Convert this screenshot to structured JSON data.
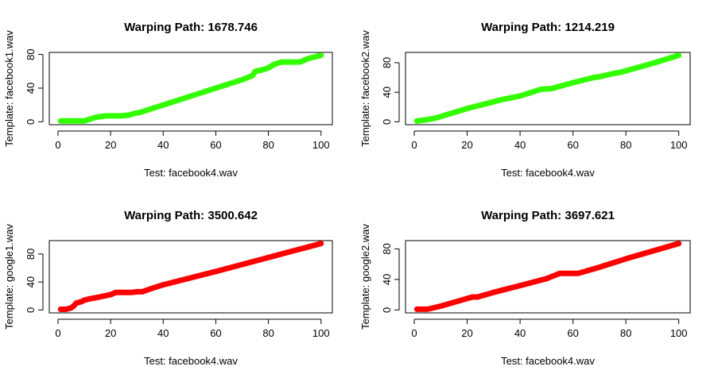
{
  "chart_data": [
    {
      "type": "line",
      "title": "Warping Path: 1678.746",
      "xlabel": "Test: facebook4.wav",
      "ylabel": "Template: facebook1.wav",
      "color": "#33ff00",
      "xlim": [
        1,
        100
      ],
      "ylim": [
        0,
        79
      ],
      "xticks": [
        0,
        20,
        40,
        60,
        80,
        100
      ],
      "yticks": [
        0,
        40,
        80
      ],
      "grid": false,
      "x": [
        1,
        10,
        12,
        14,
        16,
        18,
        20,
        24,
        27,
        29,
        31,
        35,
        40,
        50,
        60,
        66,
        70,
        74,
        75,
        78,
        80,
        82,
        85,
        90,
        92,
        95,
        100
      ],
      "y": [
        1,
        1,
        3,
        5,
        6,
        7,
        7,
        7,
        8,
        10,
        11,
        15,
        20,
        30,
        40,
        46,
        50,
        55,
        60,
        62,
        64,
        68,
        71,
        71,
        71,
        75,
        79
      ]
    },
    {
      "type": "line",
      "title": "Warping Path: 1214.219",
      "xlabel": "Test: facebook4.wav",
      "ylabel": "Template: facebook2.wav",
      "color": "#33ff00",
      "xlim": [
        1,
        100
      ],
      "ylim": [
        0,
        90
      ],
      "xticks": [
        0,
        20,
        40,
        60,
        80,
        100
      ],
      "yticks": [
        0,
        40,
        80
      ],
      "grid": false,
      "x": [
        1,
        5,
        8,
        10,
        20,
        30,
        33,
        40,
        48,
        52,
        60,
        68,
        70,
        76,
        78,
        90,
        100
      ],
      "y": [
        1,
        3,
        5,
        7,
        18,
        27,
        30,
        35,
        44,
        45,
        53,
        60,
        61,
        66,
        67,
        79,
        90
      ]
    },
    {
      "type": "line",
      "title": "Warping Path: 3500.642",
      "xlabel": "Test: facebook4.wav",
      "ylabel": "Template: google1.wav",
      "color": "#ff0000",
      "xlim": [
        1,
        100
      ],
      "ylim": [
        0,
        95
      ],
      "xticks": [
        0,
        20,
        40,
        60,
        80,
        100
      ],
      "yticks": [
        0,
        40,
        80
      ],
      "grid": false,
      "x": [
        1,
        3,
        5,
        6,
        7,
        8,
        9,
        10,
        12,
        15,
        20,
        22,
        25,
        28,
        30,
        32,
        35,
        40,
        60,
        80,
        100
      ],
      "y": [
        1,
        1,
        3,
        6,
        10,
        11,
        12,
        14,
        16,
        18,
        22,
        25,
        25,
        25,
        26,
        26,
        30,
        36,
        55,
        75,
        95
      ]
    },
    {
      "type": "line",
      "title": "Warping Path: 3697.621",
      "xlabel": "Test: facebook4.wav",
      "ylabel": "Template: google2.wav",
      "color": "#ff0000",
      "xlim": [
        1,
        100
      ],
      "ylim": [
        0,
        87
      ],
      "xticks": [
        0,
        20,
        40,
        60,
        80,
        100
      ],
      "yticks": [
        0,
        40,
        80
      ],
      "grid": false,
      "x": [
        1,
        5,
        10,
        15,
        20,
        22,
        24,
        30,
        40,
        50,
        55,
        58,
        62,
        70,
        80,
        90,
        100
      ],
      "y": [
        1,
        1,
        5,
        10,
        15,
        17,
        17,
        23,
        32,
        41,
        48,
        48,
        48,
        56,
        67,
        77,
        87
      ]
    }
  ]
}
